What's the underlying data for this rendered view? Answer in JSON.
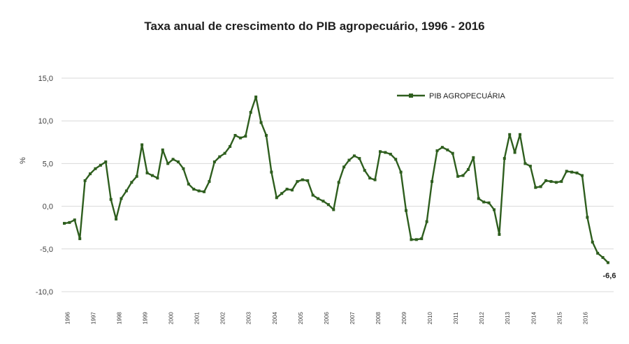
{
  "chart_data": {
    "type": "line",
    "title": "Taxa anual  de crescimento do PIB agropecuário,  1996 - 2016",
    "ylabel": "%",
    "xlabel": "",
    "ylim": [
      -10,
      15
    ],
    "y_ticks": [
      "-10,0",
      "-5,0",
      "0,0",
      "5,0",
      "10,0",
      "15,0"
    ],
    "x_tick_labels": [
      "1996",
      "1997",
      "1998",
      "1999",
      "2000",
      "2001",
      "2002",
      "2003",
      "2004",
      "2005",
      "2006",
      "2007",
      "2008",
      "2009",
      "2010",
      "2011",
      "2012",
      "2013",
      "2014",
      "2015",
      "2016"
    ],
    "grid": "horizontal",
    "legend_position": "top-right",
    "series": [
      {
        "name": "PIB AGROPECUÁRIA",
        "color": "#2e5e1e",
        "values": [
          -2.0,
          -1.9,
          -1.6,
          -3.8,
          3.0,
          3.8,
          4.4,
          4.8,
          5.2,
          0.8,
          -1.5,
          0.9,
          1.8,
          2.8,
          3.5,
          7.2,
          3.9,
          3.6,
          3.3,
          6.6,
          5.0,
          5.5,
          5.2,
          4.4,
          2.6,
          2.0,
          1.8,
          1.7,
          2.9,
          5.2,
          5.8,
          6.2,
          7.0,
          8.3,
          8.0,
          8.2,
          11.0,
          12.8,
          9.8,
          8.3,
          4.0,
          1.0,
          1.5,
          2.0,
          1.9,
          2.9,
          3.1,
          3.0,
          1.3,
          0.9,
          0.6,
          0.2,
          -0.4,
          2.8,
          4.6,
          5.4,
          5.9,
          5.6,
          4.2,
          3.3,
          3.1,
          6.4,
          6.3,
          6.1,
          5.5,
          4.0,
          -0.5,
          -3.9,
          -3.9,
          -3.8,
          -1.8,
          2.9,
          6.5,
          6.9,
          6.6,
          6.2,
          3.5,
          3.6,
          4.3,
          5.7,
          0.9,
          0.5,
          0.4,
          -0.4,
          -3.3,
          5.6,
          8.4,
          6.3,
          8.4,
          5.0,
          4.7,
          2.2,
          2.3,
          3.0,
          2.9,
          2.8,
          2.9,
          4.1,
          4.0,
          3.9,
          3.6,
          -1.3,
          -4.2,
          -5.5,
          -6.0,
          -6.6
        ]
      }
    ],
    "annotations": [
      {
        "text": "-6,6",
        "series_index": 0,
        "point": "last"
      }
    ]
  }
}
